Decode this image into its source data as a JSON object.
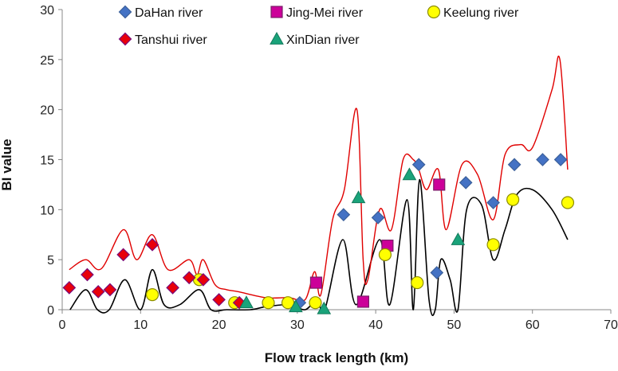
{
  "chart_data": {
    "type": "scatter",
    "title": "",
    "xlabel": "Flow track length  (km)",
    "ylabel": "BI value",
    "xlim": [
      0,
      70
    ],
    "ylim": [
      0,
      30
    ],
    "x_ticks": [
      0,
      10,
      20,
      30,
      40,
      50,
      60,
      70
    ],
    "y_ticks": [
      0,
      5,
      10,
      15,
      20,
      25,
      30
    ],
    "grid": false,
    "legend_position": "top",
    "series": [
      {
        "name": "DaHan river",
        "marker": "diamond",
        "color": "#4472C4",
        "points": [
          [
            30.3,
            0.7
          ],
          [
            35.9,
            9.5
          ],
          [
            40.3,
            9.2
          ],
          [
            45.5,
            14.5
          ],
          [
            47.8,
            3.7
          ],
          [
            51.5,
            12.7
          ],
          [
            55.0,
            10.7
          ],
          [
            57.7,
            14.5
          ],
          [
            61.3,
            15.0
          ],
          [
            63.6,
            15.0
          ]
        ]
      },
      {
        "name": "Jing-Mei river",
        "marker": "square",
        "color": "#CC0099",
        "points": [
          [
            32.4,
            2.7
          ],
          [
            38.4,
            0.8
          ],
          [
            41.5,
            6.4
          ],
          [
            48.1,
            12.5
          ]
        ]
      },
      {
        "name": "Keelung river",
        "marker": "circle",
        "color": "#FFFF00",
        "points": [
          [
            11.5,
            1.5
          ],
          [
            17.5,
            3.0
          ],
          [
            22.0,
            0.7
          ],
          [
            26.3,
            0.7
          ],
          [
            28.8,
            0.7
          ],
          [
            32.3,
            0.7
          ],
          [
            41.2,
            5.5
          ],
          [
            45.3,
            2.7
          ],
          [
            55.0,
            6.5
          ],
          [
            57.5,
            11.0
          ],
          [
            64.5,
            10.7
          ]
        ]
      },
      {
        "name": "Tanshui river",
        "marker": "diamond",
        "color": "#FF0000",
        "points": [
          [
            0.9,
            2.2
          ],
          [
            3.2,
            3.5
          ],
          [
            4.6,
            1.8
          ],
          [
            6.1,
            2.0
          ],
          [
            7.8,
            5.5
          ],
          [
            11.5,
            6.5
          ],
          [
            14.1,
            2.2
          ],
          [
            16.2,
            3.2
          ],
          [
            18.0,
            3.0
          ],
          [
            20.0,
            1.0
          ],
          [
            22.6,
            0.7
          ]
        ]
      },
      {
        "name": "XinDian river",
        "marker": "triangle",
        "color": "#1AA37A",
        "points": [
          [
            23.5,
            0.7
          ],
          [
            29.8,
            0.3
          ],
          [
            33.4,
            0.1
          ],
          [
            37.8,
            11.2
          ],
          [
            44.3,
            13.5
          ],
          [
            50.5,
            7.0
          ]
        ]
      }
    ],
    "upper_curve": {
      "color": "#E00000",
      "points": [
        [
          0.9,
          4.0
        ],
        [
          3.0,
          5.0
        ],
        [
          5.0,
          4.1
        ],
        [
          7.8,
          8.0
        ],
        [
          9.5,
          5.0
        ],
        [
          11.5,
          7.5
        ],
        [
          13.5,
          4.0
        ],
        [
          16.2,
          5.0
        ],
        [
          17.2,
          3.5
        ],
        [
          18.0,
          5.0
        ],
        [
          19.5,
          2.5
        ],
        [
          21.0,
          2.0
        ],
        [
          22.5,
          1.8
        ],
        [
          26.0,
          1.2
        ],
        [
          29.0,
          1.2
        ],
        [
          31.0,
          1.0
        ],
        [
          32.2,
          3.8
        ],
        [
          33.0,
          1.5
        ],
        [
          34.5,
          9.0
        ],
        [
          36.0,
          12.0
        ],
        [
          37.6,
          20.0
        ],
        [
          38.4,
          5.0
        ],
        [
          39.0,
          3.0
        ],
        [
          40.5,
          10.0
        ],
        [
          42.0,
          8.0
        ],
        [
          43.5,
          15.0
        ],
        [
          44.8,
          15.0
        ],
        [
          45.5,
          14.0
        ],
        [
          46.5,
          12.0
        ],
        [
          48.0,
          14.0
        ],
        [
          49.0,
          8.0
        ],
        [
          51.0,
          14.5
        ],
        [
          53.0,
          13.5
        ],
        [
          55.0,
          9.0
        ],
        [
          56.5,
          15.5
        ],
        [
          58.5,
          16.5
        ],
        [
          60.0,
          16.2
        ],
        [
          62.5,
          22.0
        ],
        [
          63.5,
          25.0
        ],
        [
          64.5,
          14.0
        ]
      ]
    },
    "lower_curve": {
      "color": "#000000",
      "points": [
        [
          1.0,
          0.0
        ],
        [
          3.0,
          2.0
        ],
        [
          4.5,
          0.0
        ],
        [
          6.0,
          0.0
        ],
        [
          8.0,
          3.0
        ],
        [
          10.0,
          0.0
        ],
        [
          11.5,
          4.0
        ],
        [
          13.0,
          0.5
        ],
        [
          15.0,
          0.5
        ],
        [
          17.5,
          2.0
        ],
        [
          19.0,
          0.0
        ],
        [
          21.0,
          0.0
        ],
        [
          24.0,
          0.0
        ],
        [
          26.0,
          0.3
        ],
        [
          29.0,
          0.5
        ],
        [
          31.0,
          0.0
        ],
        [
          32.5,
          1.0
        ],
        [
          33.5,
          0.0
        ],
        [
          35.8,
          7.0
        ],
        [
          37.5,
          0.5
        ],
        [
          40.5,
          7.0
        ],
        [
          41.8,
          0.5
        ],
        [
          44.0,
          11.0
        ],
        [
          44.8,
          0.0
        ],
        [
          45.6,
          13.0
        ],
        [
          46.8,
          1.0
        ],
        [
          47.6,
          0.0
        ],
        [
          48.3,
          5.0
        ],
        [
          49.5,
          3.0
        ],
        [
          50.5,
          0.0
        ],
        [
          51.6,
          10.0
        ],
        [
          53.5,
          10.5
        ],
        [
          55.0,
          5.0
        ],
        [
          56.5,
          8.0
        ],
        [
          58.0,
          11.5
        ],
        [
          60.0,
          12.0
        ],
        [
          62.5,
          10.0
        ],
        [
          64.5,
          7.0
        ]
      ]
    }
  }
}
